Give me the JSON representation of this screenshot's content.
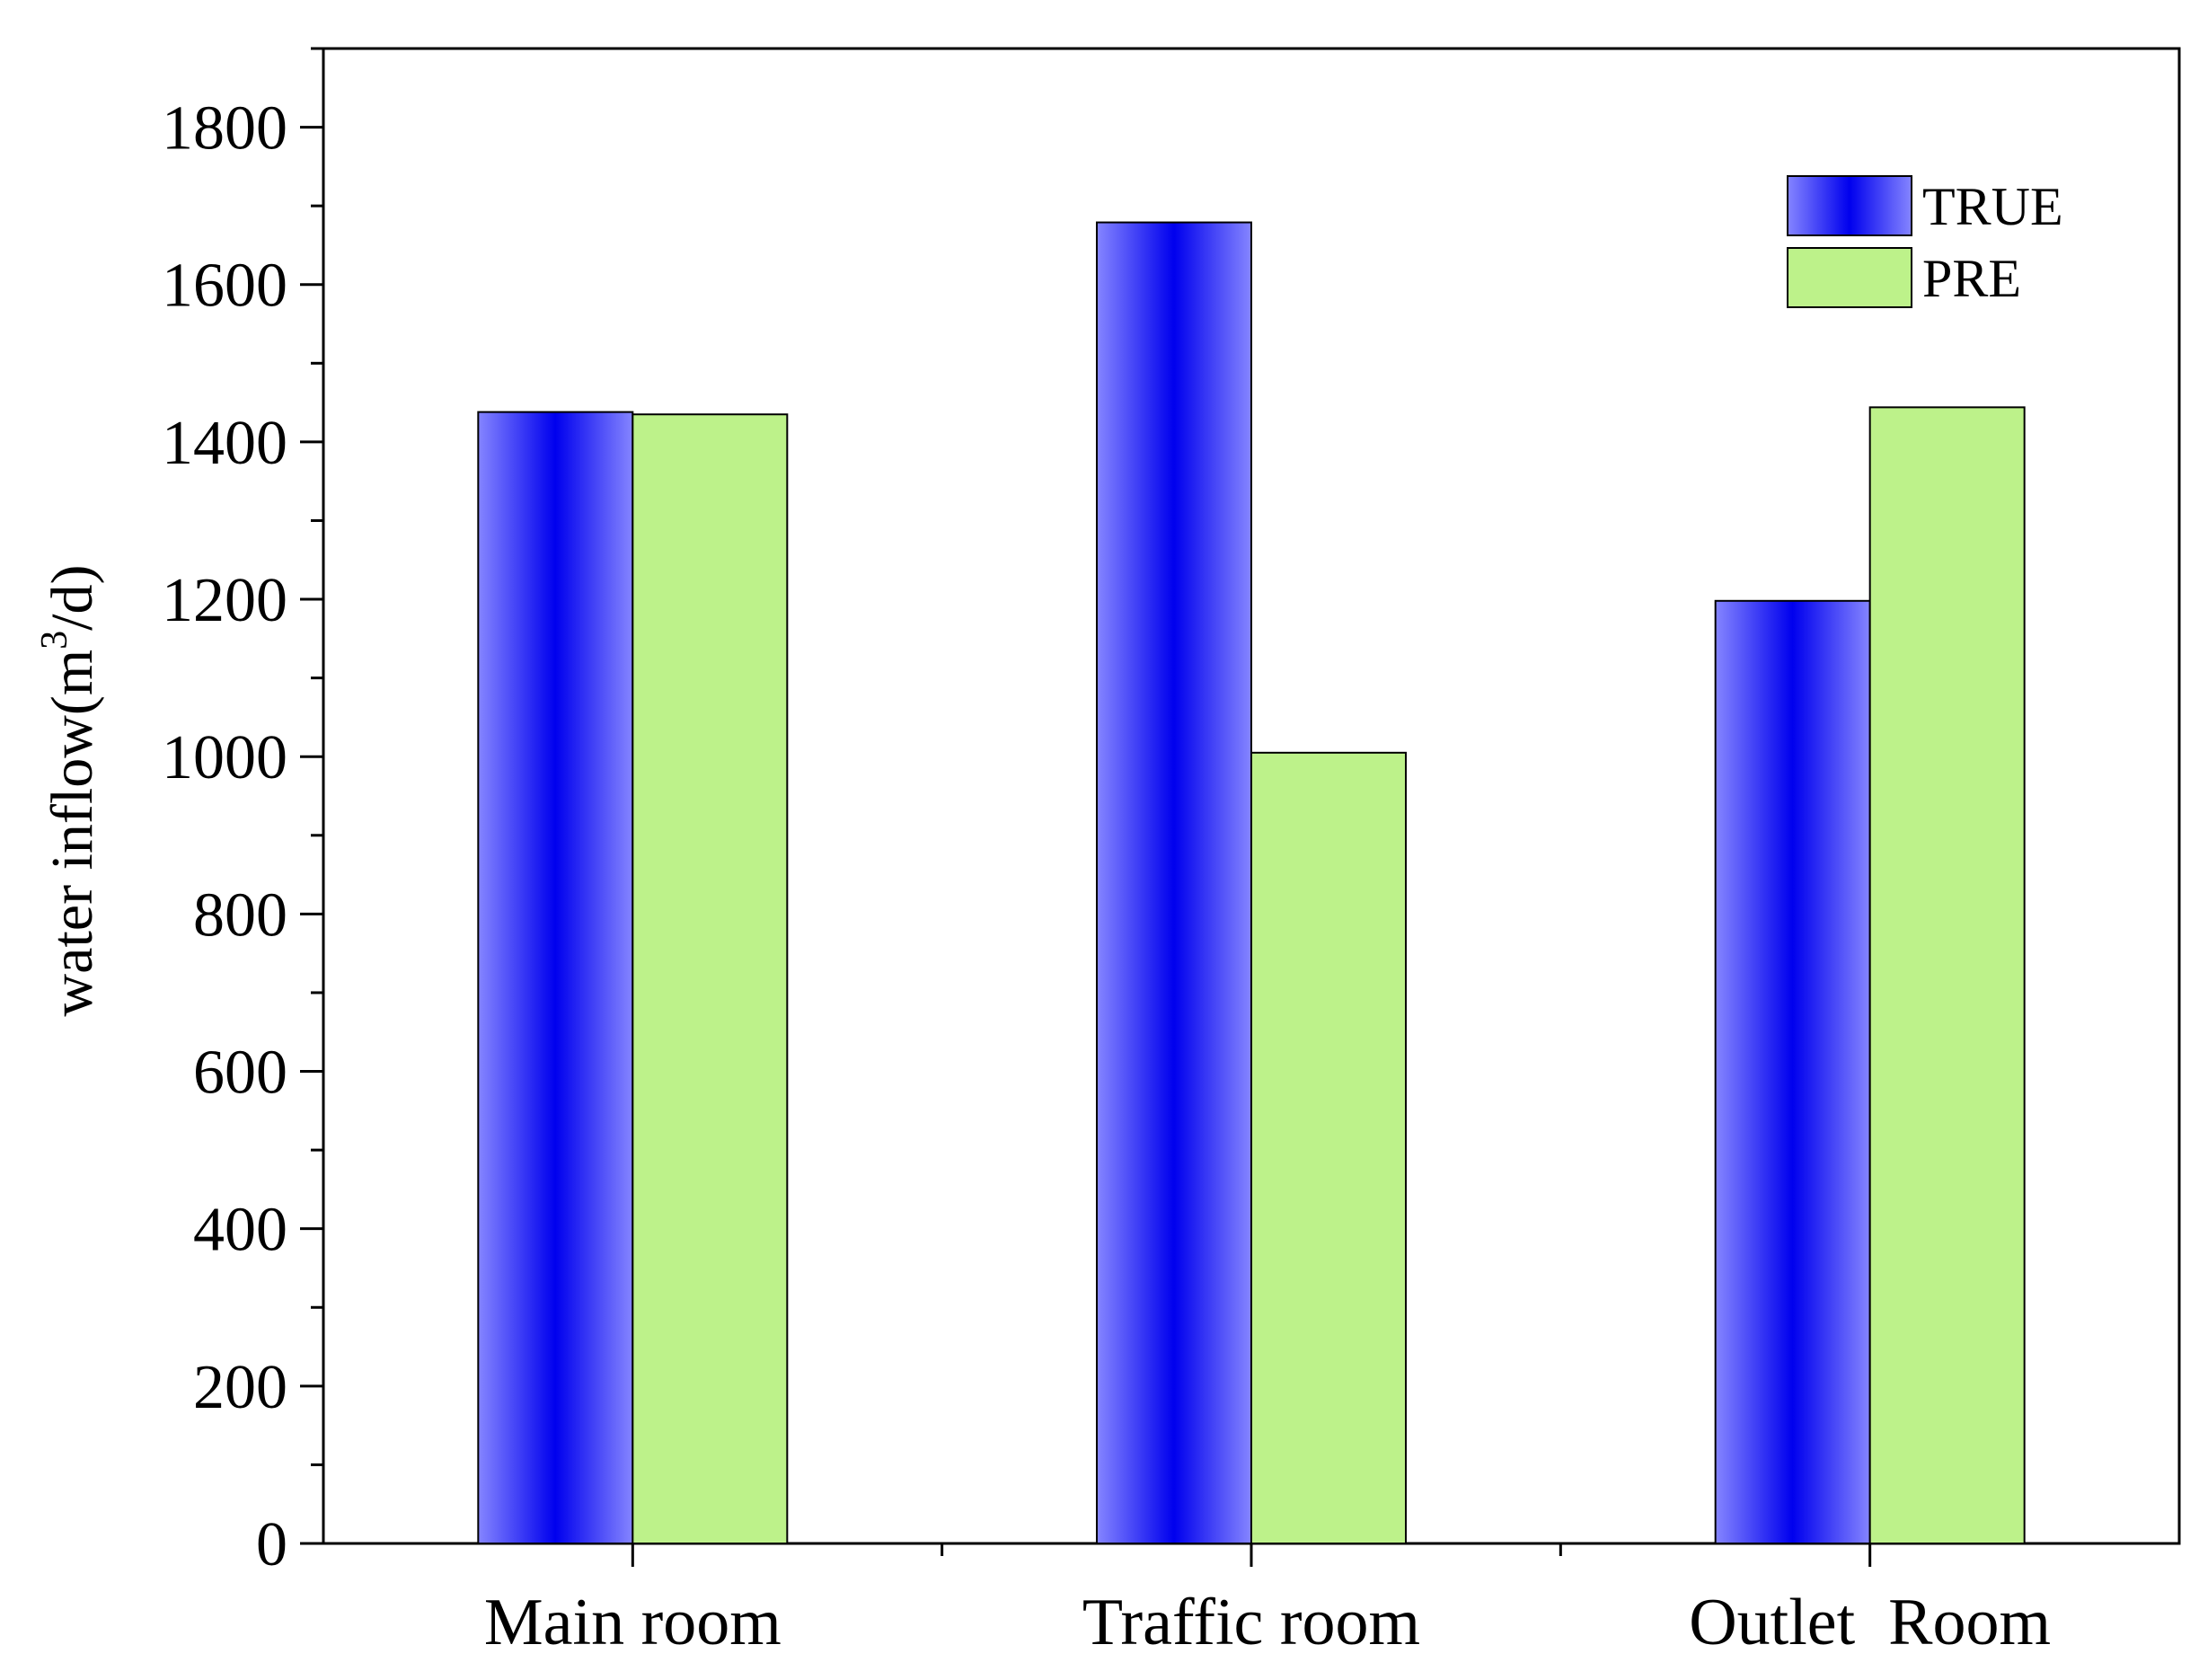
{
  "chart_data": {
    "type": "bar",
    "title": "",
    "xlabel": "",
    "ylabel": "water inflow(m",
    "ylabel_sup": "3",
    "ylabel_tail": "/d)",
    "categories": [
      "Main room",
      "Traffic room",
      "Outlet  Room"
    ],
    "series": [
      {
        "name": "TRUE",
        "values": [
          1438,
          1679,
          1198
        ]
      },
      {
        "name": "PRE",
        "values": [
          1435,
          1005,
          1444
        ]
      }
    ],
    "ylim": [
      0,
      1900
    ],
    "yticks": [
      0,
      200,
      400,
      600,
      800,
      1000,
      1200,
      1400,
      1600,
      1800
    ],
    "legend_position": "top-right",
    "grid": false,
    "colors": {
      "true_center": "#0000ee",
      "true_edge": "#8080ff",
      "pre_fill": "#bdf28a"
    }
  }
}
